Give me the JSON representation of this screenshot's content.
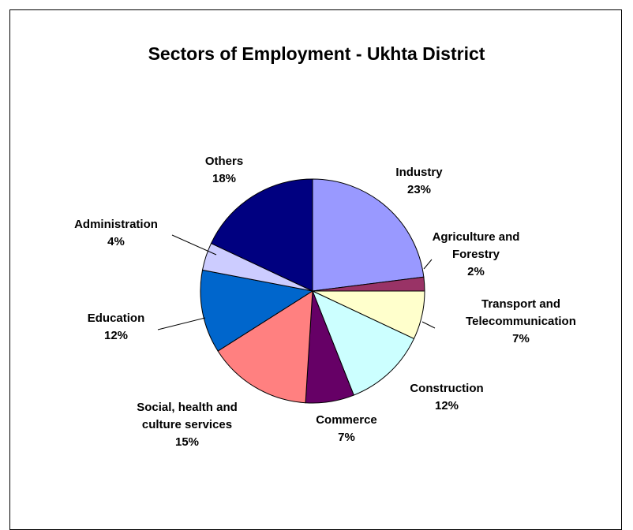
{
  "chart_data": {
    "type": "pie",
    "title": "Sectors of Employment - Ukhta District",
    "slices": [
      {
        "label_lines": [
          "Industry"
        ],
        "pct_label": "23%",
        "value": 23,
        "color": "#9999ff"
      },
      {
        "label_lines": [
          "Agriculture and",
          "Forestry"
        ],
        "pct_label": "2%",
        "value": 2,
        "color": "#993366"
      },
      {
        "label_lines": [
          "Transport and",
          "Telecommunication"
        ],
        "pct_label": "7%",
        "value": 7,
        "color": "#ffffcc"
      },
      {
        "label_lines": [
          "Construction"
        ],
        "pct_label": "12%",
        "value": 12,
        "color": "#ccffff"
      },
      {
        "label_lines": [
          "Commerce"
        ],
        "pct_label": "7%",
        "value": 7,
        "color": "#660066"
      },
      {
        "label_lines": [
          "Social, health and",
          "culture services"
        ],
        "pct_label": "15%",
        "value": 15,
        "color": "#ff8080"
      },
      {
        "label_lines": [
          "Education"
        ],
        "pct_label": "12%",
        "value": 12,
        "color": "#0066cc"
      },
      {
        "label_lines": [
          "Administration"
        ],
        "pct_label": "4%",
        "value": 4,
        "color": "#ccccff"
      },
      {
        "label_lines": [
          "Others"
        ],
        "pct_label": "18%",
        "value": 18,
        "color": "#000080"
      }
    ]
  }
}
